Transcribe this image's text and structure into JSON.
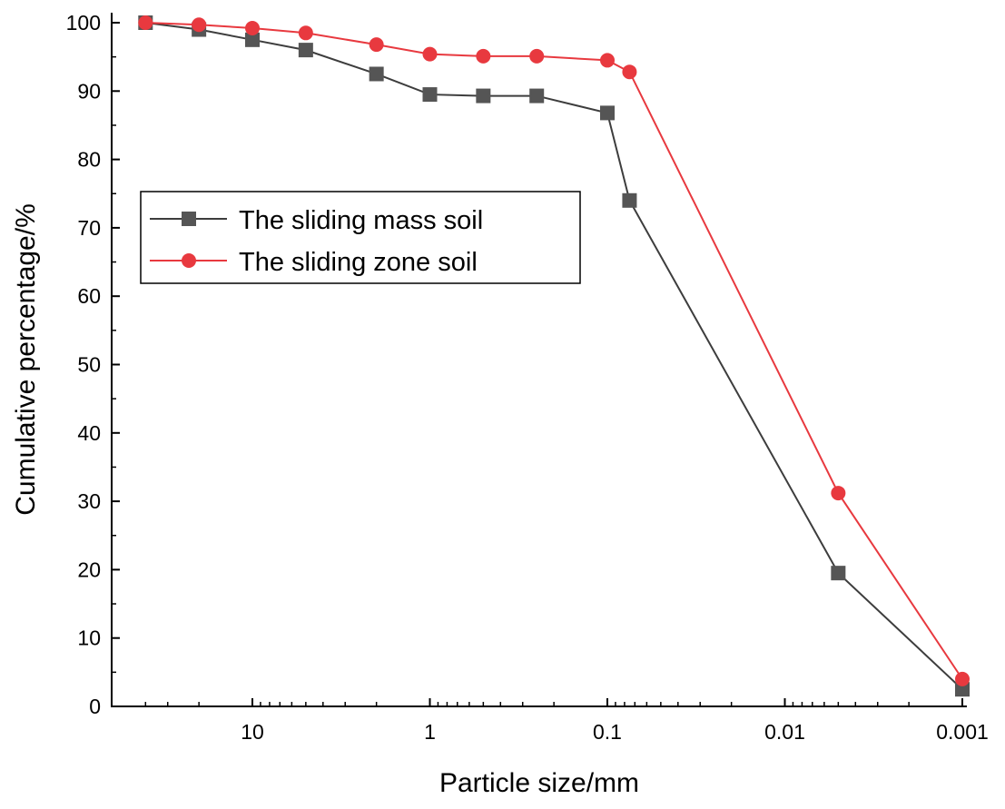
{
  "chart_data": {
    "type": "line",
    "title": "",
    "xlabel": "Particle size/mm",
    "ylabel": "Cumulative percentage/%",
    "x_scale": "log",
    "x_reversed": true,
    "xlim": [
      50,
      0.001
    ],
    "ylim": [
      0,
      100
    ],
    "x_ticks": [
      {
        "value": 10,
        "label": "10"
      },
      {
        "value": 1,
        "label": "1"
      },
      {
        "value": 0.1,
        "label": "0.1"
      },
      {
        "value": 0.01,
        "label": "0.01"
      },
      {
        "value": 0.001,
        "label": "0.001"
      }
    ],
    "y_ticks": [
      {
        "value": 0,
        "label": "0"
      },
      {
        "value": 10,
        "label": "10"
      },
      {
        "value": 20,
        "label": "20"
      },
      {
        "value": 30,
        "label": "30"
      },
      {
        "value": 40,
        "label": "40"
      },
      {
        "value": 50,
        "label": "50"
      },
      {
        "value": 60,
        "label": "60"
      },
      {
        "value": 70,
        "label": "70"
      },
      {
        "value": 80,
        "label": "80"
      },
      {
        "value": 90,
        "label": "90"
      },
      {
        "value": 100,
        "label": "100"
      }
    ],
    "grid": false,
    "legend_position": "left-upper",
    "series": [
      {
        "name": "The sliding mass soil",
        "marker": "square",
        "color": "#3d3d3d",
        "x": [
          40,
          20,
          10,
          5,
          2,
          1,
          0.5,
          0.25,
          0.1,
          0.075,
          0.005,
          0.001
        ],
        "y": [
          100,
          99,
          97.5,
          96,
          92.5,
          89.5,
          89.3,
          89.3,
          86.8,
          74,
          19.5,
          2.5
        ]
      },
      {
        "name": "The sliding zone soil",
        "marker": "circle",
        "color": "#e8393f",
        "x": [
          40,
          20,
          10,
          5,
          2,
          1,
          0.5,
          0.25,
          0.1,
          0.075,
          0.005,
          0.001
        ],
        "y": [
          100,
          99.7,
          99.2,
          98.5,
          96.8,
          95.4,
          95.1,
          95.1,
          94.5,
          92.8,
          31.2,
          4
        ]
      }
    ]
  }
}
